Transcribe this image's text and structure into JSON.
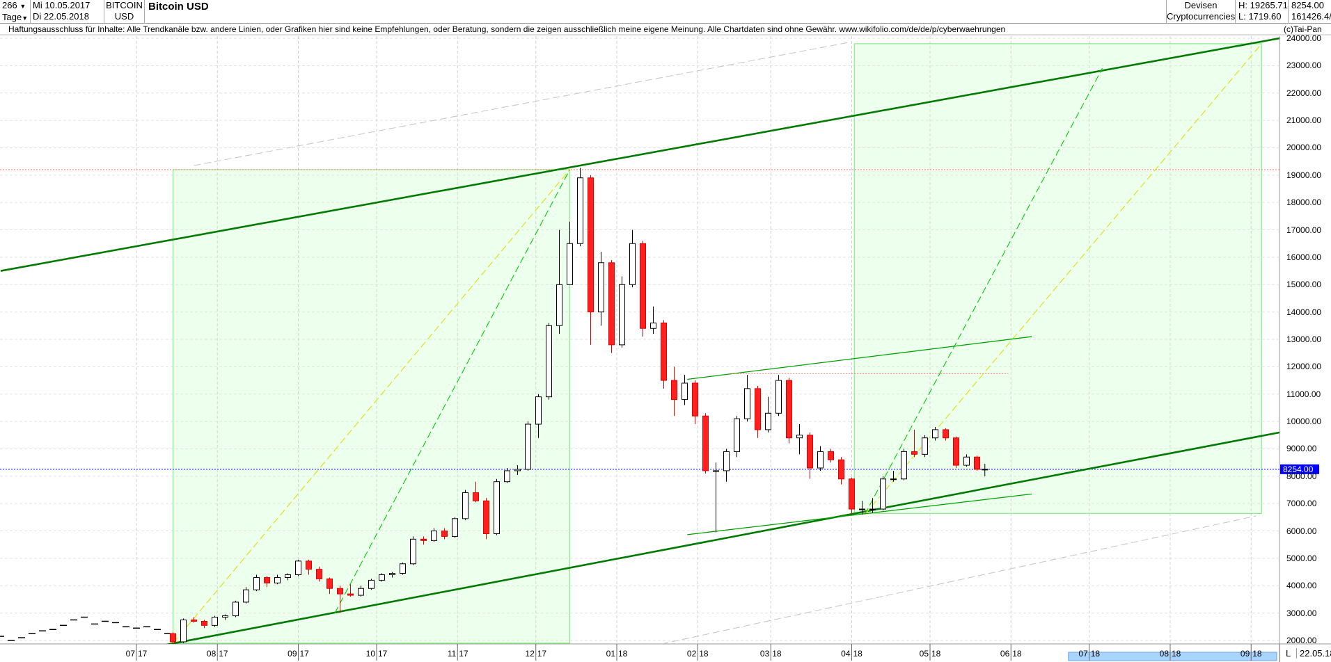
{
  "header": {
    "count": "266",
    "period": "Tage",
    "date_from": "Mi 10.05.2017",
    "date_to": "Di 22.05.2018",
    "symbol_line1": "BITCOIN",
    "symbol_line2": "USD",
    "title": "Bitcoin USD",
    "category1": "Devisen",
    "category2": "Cryptocurrencies",
    "high": "H: 19265.71",
    "low": "L: 1719.60",
    "last": "8254.00",
    "volume": "161426.4/"
  },
  "disclaimer": "Haftungsausschluss für Inhalte: Alle Trendkanäle bzw. andere Linien, oder Grafiken hier sind keine Empfehlungen, oder Beratung, sondern die zeigen ausschließlich meine eigene Meinung. Alle Chartdaten sind ohne Gewähr.  www.wikifolio.com/de/de/p/cyberwaehrungen",
  "copyright": "(c)Tai-Pan",
  "footer": {
    "scale_mode": "L",
    "end_date": "22.05.18"
  },
  "chart_data": {
    "type": "candlestick",
    "title": "Bitcoin USD",
    "ylim": [
      2000,
      24000
    ],
    "yticks": [
      "24000.00",
      "23000.00",
      "22000.00",
      "21000.00",
      "20000.00",
      "19000.00",
      "18000.00",
      "17000.00",
      "16000.00",
      "15000.00",
      "14000.00",
      "13000.00",
      "12000.00",
      "11000.00",
      "10000.00",
      "9000.00",
      "8000.00",
      "7000.00",
      "6000.00",
      "5000.00",
      "4000.00",
      "3000.00",
      "2000.00"
    ],
    "xticks": [
      {
        "date": "2017-07-01",
        "m": "07",
        "y": "17"
      },
      {
        "date": "2017-08-01",
        "m": "08",
        "y": "17"
      },
      {
        "date": "2017-09-01",
        "m": "09",
        "y": "17"
      },
      {
        "date": "2017-10-01",
        "m": "10",
        "y": "17"
      },
      {
        "date": "2017-11-01",
        "m": "11",
        "y": "17"
      },
      {
        "date": "2017-12-01",
        "m": "12",
        "y": "17"
      },
      {
        "date": "2018-01-01",
        "m": "01",
        "y": "18"
      },
      {
        "date": "2018-02-01",
        "m": "02",
        "y": "18"
      },
      {
        "date": "2018-03-01",
        "m": "03",
        "y": "18"
      },
      {
        "date": "2018-04-01",
        "m": "04",
        "y": "18"
      },
      {
        "date": "2018-05-01",
        "m": "05",
        "y": "18"
      },
      {
        "date": "2018-06-01",
        "m": "06",
        "y": "18"
      },
      {
        "date": "2018-07-01",
        "m": "07",
        "y": "18"
      },
      {
        "date": "2018-08-01",
        "m": "08",
        "y": "18"
      },
      {
        "date": "2018-09-01",
        "m": "09",
        "y": "18"
      }
    ],
    "last_price": 8254.0,
    "last_price_label": "8254.00",
    "close_dashes": [
      [
        "2017-05-10",
        2150
      ],
      [
        "2017-05-14",
        2000
      ],
      [
        "2017-05-18",
        2100
      ],
      [
        "2017-05-22",
        2250
      ],
      [
        "2017-05-26",
        2350
      ],
      [
        "2017-05-30",
        2400
      ],
      [
        "2017-06-03",
        2550
      ],
      [
        "2017-06-07",
        2750
      ],
      [
        "2017-06-11",
        2850
      ],
      [
        "2017-06-15",
        2600
      ],
      [
        "2017-06-19",
        2700
      ],
      [
        "2017-06-23",
        2650
      ],
      [
        "2017-06-27",
        2500
      ],
      [
        "2017-07-01",
        2450
      ],
      [
        "2017-07-05",
        2500
      ],
      [
        "2017-07-09",
        2400
      ],
      [
        "2017-07-13",
        2250
      ]
    ],
    "candles": [
      [
        "2017-07-15",
        2250,
        2300,
        1720,
        1950
      ],
      [
        "2017-07-19",
        1950,
        2800,
        1900,
        2750
      ],
      [
        "2017-07-23",
        2750,
        2850,
        2650,
        2700
      ],
      [
        "2017-07-27",
        2700,
        2750,
        2450,
        2550
      ],
      [
        "2017-07-31",
        2550,
        2900,
        2500,
        2850
      ],
      [
        "2017-08-04",
        2850,
        2950,
        2750,
        2900
      ],
      [
        "2017-08-08",
        2900,
        3450,
        2850,
        3400
      ],
      [
        "2017-08-12",
        3400,
        3950,
        3350,
        3850
      ],
      [
        "2017-08-16",
        3850,
        4400,
        3800,
        4300
      ],
      [
        "2017-08-20",
        4300,
        4350,
        3950,
        4100
      ],
      [
        "2017-08-24",
        4100,
        4400,
        4050,
        4300
      ],
      [
        "2017-08-28",
        4300,
        4450,
        4200,
        4400
      ],
      [
        "2017-09-01",
        4400,
        4950,
        4350,
        4900
      ],
      [
        "2017-09-05",
        4900,
        4950,
        4400,
        4600
      ],
      [
        "2017-09-09",
        4600,
        4700,
        4150,
        4250
      ],
      [
        "2017-09-13",
        4250,
        4300,
        3700,
        3900
      ],
      [
        "2017-09-17",
        3900,
        4000,
        3000,
        3700
      ],
      [
        "2017-09-21",
        3700,
        4050,
        3600,
        3650
      ],
      [
        "2017-09-25",
        3650,
        4000,
        3600,
        3900
      ],
      [
        "2017-09-29",
        3900,
        4250,
        3850,
        4200
      ],
      [
        "2017-10-03",
        4200,
        4450,
        4150,
        4400
      ],
      [
        "2017-10-07",
        4400,
        4500,
        4300,
        4450
      ],
      [
        "2017-10-11",
        4450,
        4850,
        4400,
        4800
      ],
      [
        "2017-10-15",
        4800,
        5800,
        4750,
        5700
      ],
      [
        "2017-10-19",
        5700,
        5800,
        5500,
        5650
      ],
      [
        "2017-10-23",
        5650,
        6100,
        5600,
        6000
      ],
      [
        "2017-10-27",
        6000,
        6100,
        5700,
        5800
      ],
      [
        "2017-10-31",
        5800,
        6500,
        5750,
        6450
      ],
      [
        "2017-11-04",
        6450,
        7500,
        6400,
        7400
      ],
      [
        "2017-11-08",
        7400,
        7800,
        7050,
        7100
      ],
      [
        "2017-11-12",
        7100,
        7200,
        5700,
        5900
      ],
      [
        "2017-11-16",
        5900,
        7900,
        5850,
        7800
      ],
      [
        "2017-11-20",
        7800,
        8300,
        7750,
        8200
      ],
      [
        "2017-11-24",
        8200,
        8400,
        8050,
        8250
      ],
      [
        "2017-11-28",
        8250,
        10000,
        8200,
        9900
      ],
      [
        "2017-12-02",
        9900,
        11000,
        9400,
        10900
      ],
      [
        "2017-12-06",
        10900,
        13600,
        10800,
        13500
      ],
      [
        "2017-12-10",
        13500,
        17000,
        13200,
        15000
      ],
      [
        "2017-12-14",
        15000,
        17300,
        15000,
        16500
      ],
      [
        "2017-12-18",
        16500,
        19265,
        16400,
        18900
      ],
      [
        "2017-12-22",
        18900,
        19000,
        12800,
        14000
      ],
      [
        "2017-12-26",
        14000,
        16200,
        13500,
        15800
      ],
      [
        "2017-12-30",
        15800,
        15900,
        12500,
        12800
      ],
      [
        "2018-01-03",
        12800,
        15300,
        12700,
        15000
      ],
      [
        "2018-01-07",
        15000,
        17000,
        14900,
        16500
      ],
      [
        "2018-01-11",
        16500,
        16600,
        13100,
        13400
      ],
      [
        "2018-01-15",
        13400,
        14200,
        13200,
        13600
      ],
      [
        "2018-01-19",
        13600,
        13700,
        11200,
        11500
      ],
      [
        "2018-01-23",
        11500,
        12000,
        10200,
        10800
      ],
      [
        "2018-01-27",
        10800,
        11700,
        10600,
        11400
      ],
      [
        "2018-01-31",
        11400,
        11500,
        9900,
        10200
      ],
      [
        "2018-02-04",
        10200,
        10300,
        8100,
        8200
      ],
      [
        "2018-02-08",
        8200,
        8500,
        5950,
        8200
      ],
      [
        "2018-02-12",
        8200,
        9000,
        7800,
        8900
      ],
      [
        "2018-02-16",
        8900,
        10200,
        8700,
        10100
      ],
      [
        "2018-02-20",
        10100,
        11700,
        10000,
        11200
      ],
      [
        "2018-02-24",
        11200,
        11300,
        9400,
        9700
      ],
      [
        "2018-02-28",
        9700,
        10900,
        9600,
        10300
      ],
      [
        "2018-03-04",
        10300,
        11700,
        10200,
        11500
      ],
      [
        "2018-03-08",
        11500,
        11600,
        9200,
        9400
      ],
      [
        "2018-03-12",
        9400,
        9900,
        8800,
        9500
      ],
      [
        "2018-03-16",
        9500,
        9600,
        7900,
        8300
      ],
      [
        "2018-03-20",
        8300,
        9100,
        8200,
        8900
      ],
      [
        "2018-03-24",
        8900,
        9000,
        8500,
        8600
      ],
      [
        "2018-03-28",
        8600,
        8700,
        7700,
        7900
      ],
      [
        "2018-04-01",
        7900,
        7950,
        6600,
        6800
      ],
      [
        "2018-04-05",
        6800,
        7100,
        6600,
        6800
      ],
      [
        "2018-04-09",
        6800,
        7200,
        6650,
        6800
      ],
      [
        "2018-04-13",
        6800,
        8000,
        6750,
        7900
      ],
      [
        "2018-04-17",
        7900,
        8200,
        7800,
        7900
      ],
      [
        "2018-04-21",
        7900,
        9000,
        7850,
        8900
      ],
      [
        "2018-04-25",
        8900,
        9700,
        8700,
        8800
      ],
      [
        "2018-04-29",
        8800,
        9500,
        8700,
        9400
      ],
      [
        "2018-05-03",
        9400,
        9800,
        9300,
        9700
      ],
      [
        "2018-05-07",
        9700,
        9750,
        9300,
        9400
      ],
      [
        "2018-05-11",
        9400,
        9450,
        8300,
        8400
      ],
      [
        "2018-05-15",
        8400,
        8800,
        8350,
        8700
      ],
      [
        "2018-05-19",
        8700,
        8750,
        8200,
        8250
      ],
      [
        "2018-05-22",
        8250,
        8450,
        8000,
        8254
      ]
    ],
    "overlays": {
      "rects": [
        {
          "from": [
            "2017-07-15",
            19200
          ],
          "to": [
            "2017-12-14",
            1900
          ]
        },
        {
          "from": [
            "2018-04-02",
            23800
          ],
          "to": [
            "2018-09-05",
            6640
          ]
        }
      ],
      "lines": [
        {
          "from": [
            "2017-05-10",
            15500
          ],
          "to": [
            "2018-09-12",
            24000
          ],
          "color": "#007a00",
          "style": "thick"
        },
        {
          "from": [
            "2017-06-29",
            1600
          ],
          "to": [
            "2018-09-12",
            9600
          ],
          "color": "#007a00",
          "style": "thick"
        },
        {
          "from": [
            "2017-07-23",
            19350
          ],
          "to": [
            "2018-03-31",
            23850
          ],
          "color": "#c8c8c8",
          "style": "dash"
        },
        {
          "from": [
            "2017-12-14",
            1150
          ],
          "to": [
            "2018-09-03",
            6550
          ],
          "color": "#c8c8c8",
          "style": "dash"
        },
        {
          "from": [
            "2017-07-15",
            1900
          ],
          "to": [
            "2017-12-14",
            19200
          ],
          "color": "#e0e000",
          "style": "dash"
        },
        {
          "from": [
            "2017-09-15",
            3000
          ],
          "to": [
            "2017-12-14",
            19200
          ],
          "color": "#00cc00",
          "style": "dash"
        },
        {
          "from": [
            "2018-04-06",
            6600
          ],
          "to": [
            "2018-07-06",
            22900
          ],
          "color": "#00cc00",
          "style": "dash"
        },
        {
          "from": [
            "2018-04-06",
            6600
          ],
          "to": [
            "2018-09-05",
            23800
          ],
          "color": "#e0e000",
          "style": "dash"
        },
        {
          "from": [
            "2018-01-28",
            11540
          ],
          "to": [
            "2018-06-09",
            13100
          ],
          "color": "#00a000",
          "style": "thin"
        },
        {
          "from": [
            "2018-01-28",
            5865
          ],
          "to": [
            "2018-06-09",
            7350
          ],
          "color": "#00a000",
          "style": "thin"
        },
        {
          "from": [
            "2018-02-13",
            11750
          ],
          "to": [
            "2018-05-31",
            11750
          ],
          "color": "#ff7070",
          "style": "dot"
        }
      ],
      "hlines": [
        {
          "price": 19200,
          "color": "#ff7070",
          "style": "dot"
        },
        {
          "price": 8254,
          "color": "#0000ff",
          "style": "dot"
        }
      ]
    }
  }
}
